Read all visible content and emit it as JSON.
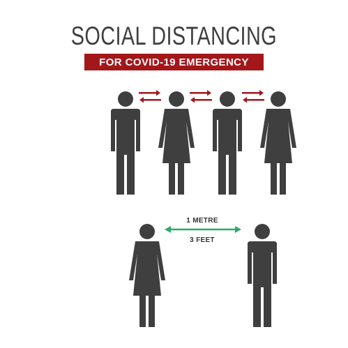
{
  "title": "SOCIAL DISTANCING",
  "subtitle": "FOR COVID-19 EMERGENCY",
  "distance": {
    "metric": "1 METRE",
    "imperial": "3 FEET"
  },
  "colors": {
    "figure": "#3f3f3f",
    "accent_red": "#a3171b",
    "accent_green": "#2daa6a"
  },
  "icons": {
    "group_row": [
      "man-icon",
      "woman-icon",
      "man-icon",
      "woman-icon"
    ],
    "pair_row": [
      "woman-icon",
      "man-icon"
    ],
    "red_arrows": "double-arrow-icon",
    "green_arrow": "double-headed-arrow-icon"
  }
}
